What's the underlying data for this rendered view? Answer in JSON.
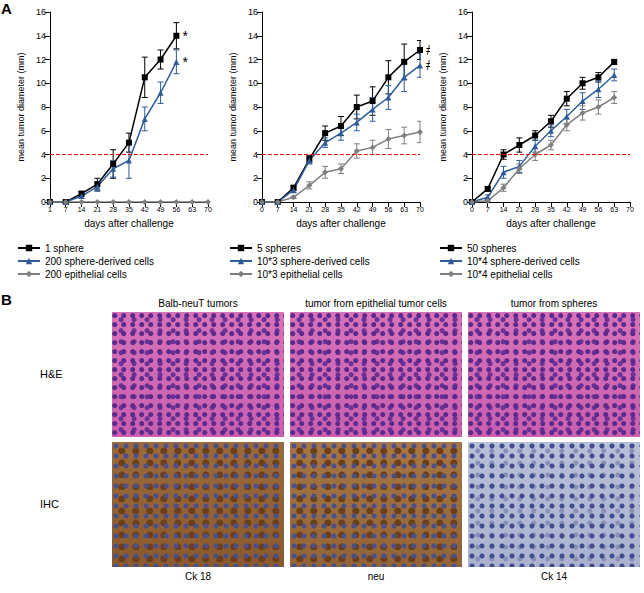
{
  "chart_data": [
    {
      "type": "line",
      "x_label": "days after challenge",
      "y_label": "mean tumor diameter (mm)",
      "categories": [
        "1",
        "7",
        "14",
        "21",
        "28",
        "35",
        "42",
        "49",
        "56",
        "63",
        "70"
      ],
      "ylim": [
        0,
        16
      ],
      "yticks": [
        0,
        2,
        4,
        6,
        8,
        10,
        12,
        14,
        16
      ],
      "grid": false,
      "threshold": 4,
      "series": [
        {
          "name": "1 sphere",
          "color": "#000000",
          "marker": "square",
          "values": [
            0,
            0,
            0.7,
            1.5,
            3.2,
            5,
            10.5,
            12,
            14,
            null,
            null
          ],
          "errors": [
            0,
            0,
            0.2,
            0.5,
            1.2,
            0.8,
            1.7,
            0.8,
            1.1,
            null,
            null
          ],
          "annotation": "*"
        },
        {
          "name": "200 sphere-derived cells",
          "color": "#2e5c9a",
          "marker": "triangle",
          "values": [
            0,
            0,
            0.5,
            1.3,
            2.8,
            3.5,
            7,
            9.2,
            11.8,
            null,
            null
          ],
          "errors": [
            0,
            0,
            0.2,
            0.4,
            0.7,
            1.5,
            1.0,
            0.9,
            1.0,
            null,
            null
          ],
          "annotation": "*"
        },
        {
          "name": "200 epithelial cells",
          "color": "#7f7f7f",
          "marker": "diamond",
          "values": [
            0,
            0,
            0,
            0,
            0,
            0,
            0,
            0,
            0,
            0,
            0
          ],
          "errors": [
            0,
            0,
            0,
            0,
            0,
            0,
            0,
            0,
            0,
            0,
            0
          ]
        }
      ]
    },
    {
      "type": "line",
      "x_label": "days after challenge",
      "y_label": "mean tumor diameter (mm)",
      "categories": [
        "0",
        "7",
        "14",
        "21",
        "28",
        "35",
        "42",
        "49",
        "56",
        "63",
        "70"
      ],
      "ylim": [
        0,
        16
      ],
      "yticks": [
        0,
        2,
        4,
        6,
        8,
        10,
        12,
        14,
        16
      ],
      "grid": false,
      "threshold": 4,
      "series": [
        {
          "name": "5 spheres",
          "color": "#000000",
          "marker": "square",
          "values": [
            0,
            0,
            1.2,
            3.6,
            5.8,
            6.4,
            8.0,
            8.5,
            10.5,
            11.8,
            12.8
          ],
          "errors": [
            0,
            0,
            0.2,
            0.3,
            0.6,
            0.8,
            1.0,
            1.2,
            1.4,
            1.5,
            0.8
          ],
          "annotation": "#"
        },
        {
          "name": "10*3 sphere-derived cells",
          "color": "#2e5c9a",
          "marker": "triangle",
          "values": [
            0,
            0,
            1.0,
            3.5,
            5.0,
            5.8,
            6.7,
            7.8,
            8.8,
            10.5,
            11.5
          ],
          "errors": [
            0,
            0,
            0.2,
            0.3,
            0.4,
            0.6,
            0.7,
            1.0,
            1.0,
            1.2,
            1.0
          ],
          "annotation": "#"
        },
        {
          "name": "10*3 epithelial cells",
          "color": "#7f7f7f",
          "marker": "diamond",
          "values": [
            0,
            0,
            0.4,
            1.4,
            2.5,
            2.8,
            4.3,
            4.6,
            5.3,
            5.6,
            5.9
          ],
          "errors": [
            0,
            0,
            0.1,
            0.3,
            0.5,
            0.4,
            0.6,
            0.6,
            0.8,
            0.7,
            0.9
          ]
        }
      ]
    },
    {
      "type": "line",
      "x_label": "days after challenge",
      "y_label": "mean tumor diameter (mm)",
      "categories": [
        "0",
        "7",
        "14",
        "21",
        "28",
        "35",
        "42",
        "49",
        "56",
        "63",
        "70"
      ],
      "ylim": [
        0,
        16
      ],
      "yticks": [
        0,
        2,
        4,
        6,
        8,
        10,
        12,
        14,
        16
      ],
      "grid": false,
      "threshold": 4,
      "series": [
        {
          "name": "50 spheres",
          "color": "#000000",
          "marker": "square",
          "values": [
            0,
            1.1,
            4.0,
            4.8,
            5.6,
            6.8,
            8.7,
            10.0,
            10.5,
            11.8,
            null
          ],
          "errors": [
            0,
            0.2,
            0.4,
            0.6,
            0.4,
            0.5,
            0.6,
            0.5,
            0.4,
            0.2,
            null
          ]
        },
        {
          "name": "10*4 sphere-derived cells",
          "color": "#2e5c9a",
          "marker": "triangle",
          "values": [
            0,
            0.4,
            2.5,
            3.0,
            4.7,
            6.0,
            7.2,
            8.5,
            9.5,
            10.7,
            null
          ],
          "errors": [
            0,
            0.2,
            0.5,
            0.5,
            0.5,
            0.5,
            0.6,
            0.7,
            0.7,
            0.5,
            null
          ]
        },
        {
          "name": "10*4 epithelial cells",
          "color": "#7f7f7f",
          "marker": "diamond",
          "values": [
            0,
            0.1,
            1.2,
            2.8,
            4.0,
            4.8,
            6.5,
            7.5,
            8.0,
            8.8,
            null
          ],
          "errors": [
            0,
            0.1,
            0.3,
            0.4,
            0.5,
            0.4,
            0.5,
            0.6,
            0.6,
            0.5,
            null
          ]
        }
      ]
    }
  ],
  "panel_labels": [
    "A",
    "B"
  ],
  "panel_b": {
    "columns": [
      "Balb-neuT tumors",
      "tumor from epithelial tumor cells",
      "tumor from spheres"
    ],
    "rows": [
      "H&E",
      "IHC"
    ],
    "stains": [
      "Ck 18",
      "neu",
      "Ck 14"
    ]
  }
}
